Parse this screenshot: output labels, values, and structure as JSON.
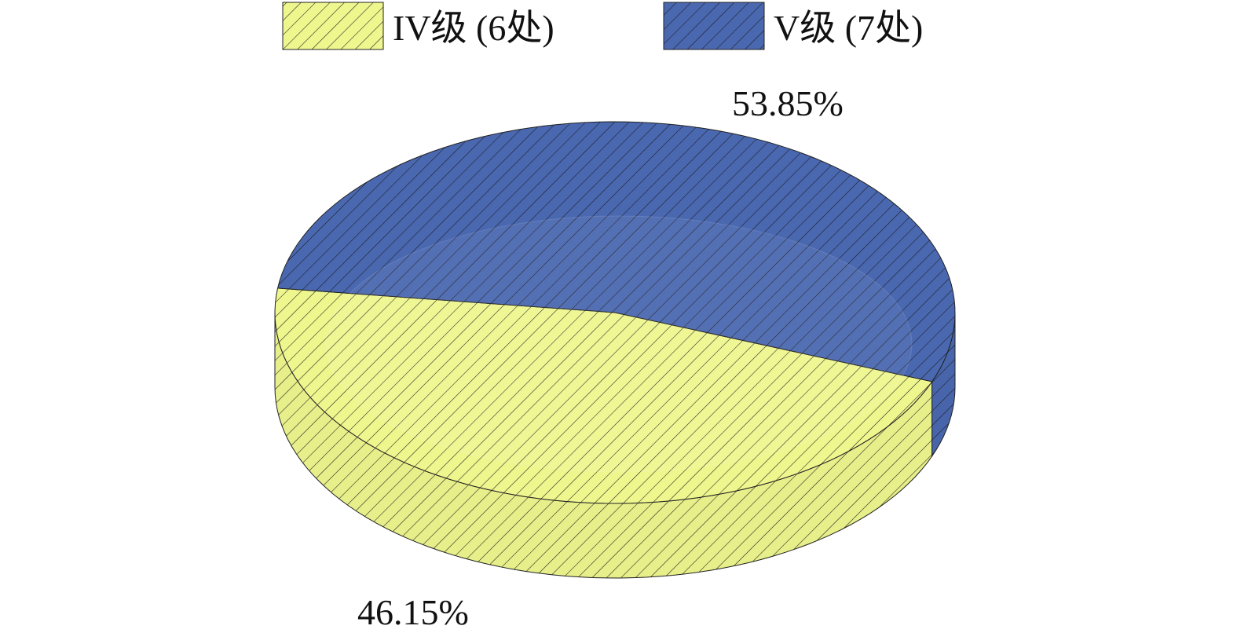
{
  "chart_data": {
    "type": "pie",
    "style": "3d",
    "hatch": "diagonal",
    "legend_position": "top",
    "series": [
      {
        "name": "IV级 (6处)",
        "value": 6,
        "percent": 46.15,
        "label": "46.15%",
        "color": "#eef68e"
      },
      {
        "name": "V级 (7处)",
        "value": 7,
        "percent": 53.85,
        "label": "53.85%",
        "color": "#4a68b0"
      }
    ]
  }
}
